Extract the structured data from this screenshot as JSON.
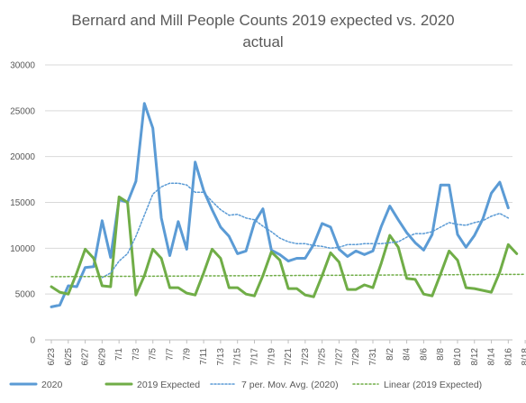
{
  "chart_data": {
    "type": "line",
    "title": "Bernard and Mill People Counts 2019 expected vs. 2020 actual",
    "title_lines": [
      "Bernard and Mill People Counts 2019 expected vs. 2020",
      "actual"
    ],
    "ylim": [
      0,
      30000
    ],
    "y_ticks": [
      "0",
      "5000",
      "10000",
      "15000",
      "20000",
      "25000",
      "30000"
    ],
    "x_ticks": [
      "6/23",
      "6/25",
      "6/27",
      "6/29",
      "7/1",
      "7/3",
      "7/5",
      "7/7",
      "7/9",
      "7/11",
      "7/13",
      "7/15",
      "7/17",
      "7/19",
      "7/21",
      "7/23",
      "7/25",
      "7/27",
      "7/29",
      "7/31",
      "8/2",
      "8/4",
      "8/6",
      "8/8",
      "8/10",
      "8/12",
      "8/14",
      "8/16",
      "8/18"
    ],
    "grid": true,
    "legend_position": "bottom",
    "series": [
      {
        "name": "2020",
        "color": "#5B9BD5",
        "style": "solid",
        "values": [
          3600,
          3800,
          5900,
          5800,
          7900,
          8000,
          13000,
          9000,
          15300,
          15000,
          17300,
          25800,
          23100,
          13300,
          9200,
          12900,
          9900,
          19400,
          16300,
          14200,
          12300,
          11300,
          9400,
          9700,
          12800,
          14300,
          9800,
          9300,
          8600,
          8900,
          8900,
          10400,
          12700,
          12300,
          9900,
          9100,
          9700,
          9300,
          9700,
          12400,
          14600,
          13100,
          11700,
          10600,
          9800,
          11500,
          16900,
          16900,
          11500,
          10100,
          11400,
          13200,
          16000,
          17200,
          14400
        ]
      },
      {
        "name": "2019 Expected",
        "color": "#70AD47",
        "style": "solid",
        "values": [
          5800,
          5200,
          5000,
          7300,
          9900,
          8900,
          5900,
          5800,
          15600,
          15000,
          4900,
          7000,
          9900,
          8900,
          5700,
          5700,
          5100,
          4900,
          7300,
          9900,
          8900,
          5700,
          5700,
          5000,
          4800,
          7000,
          9600,
          8700,
          5600,
          5600,
          4900,
          4700,
          7000,
          9500,
          8500,
          5500,
          5500,
          6000,
          5700,
          8400,
          11400,
          10100,
          6700,
          6600,
          5000,
          4800,
          7200,
          9700,
          8700,
          5700,
          5600,
          5400,
          5200,
          7400,
          10400,
          9400
        ]
      },
      {
        "name": "7 per. Mov. Avg. (2020)",
        "color": "#5B9BD5",
        "style": "dotted",
        "values": [
          null,
          null,
          null,
          null,
          null,
          null,
          6800,
          7300,
          8600,
          9400,
          11300,
          13600,
          15900,
          16700,
          17100,
          17100,
          16900,
          16100,
          16100,
          15100,
          14200,
          13600,
          13700,
          13300,
          13100,
          12400,
          11800,
          11100,
          10700,
          10500,
          10500,
          10300,
          10200,
          10000,
          10100,
          10400,
          10400,
          10500,
          10500,
          10500,
          10600,
          10700,
          11200,
          11600,
          11600,
          11800,
          12300,
          12800,
          12600,
          12500,
          12800,
          13000,
          13500,
          13800,
          13300
        ]
      },
      {
        "name": "Linear (2019 Expected)",
        "color": "#70AD47",
        "style": "dotted",
        "values": [
          6900,
          7150
        ]
      }
    ]
  },
  "colors": {
    "grid": "#d9d9d9",
    "text": "#595959",
    "series_2020": "#5B9BD5",
    "series_2019": "#70AD47"
  }
}
